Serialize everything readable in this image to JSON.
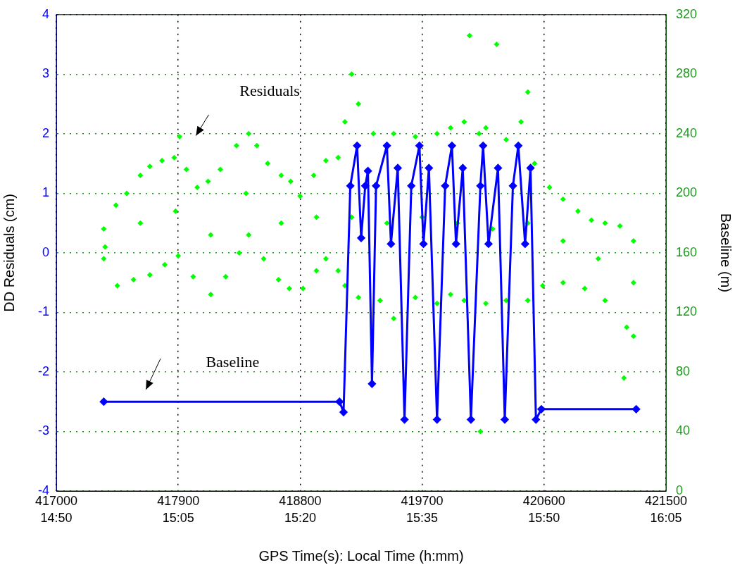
{
  "chart_data": {
    "type": "scatter",
    "xlabel": "GPS Time(s): Local Time (h:mm)",
    "ylabel": "DD Residuals (cm)",
    "y2label": "Baseline (m)",
    "annotations": [
      "Residuals",
      "Baseline"
    ],
    "xlim": [
      417000,
      421500
    ],
    "xticks": [
      417000,
      417900,
      418800,
      419700,
      420600,
      421500
    ],
    "x2lim": [
      14.8333,
      16.0833
    ],
    "x2ticks": [
      {
        "value": 14.8333,
        "label": "14:50"
      },
      {
        "value": 15.0833,
        "label": "15:05"
      },
      {
        "value": 15.3333,
        "label": "15:20"
      },
      {
        "value": 15.5833,
        "label": "15:35"
      },
      {
        "value": 15.8333,
        "label": "15:50"
      },
      {
        "value": 16.0833,
        "label": "16:05"
      }
    ],
    "ylim": [
      -4,
      4
    ],
    "yticks": [
      -4,
      -3,
      -2,
      -1,
      0,
      1,
      2,
      3,
      4
    ],
    "y2lim": [
      0,
      320
    ],
    "y2ticks": [
      0,
      40,
      80,
      120,
      160,
      200,
      240,
      280,
      320
    ],
    "grid": true,
    "legend": false,
    "marker": "diamond",
    "series": [
      {
        "type": "scatter",
        "color": "#00ff00",
        "x": [
          417350,
          417440,
          417520,
          417620,
          417690,
          417780,
          417870,
          417910,
          417960,
          418040,
          418120,
          418210,
          418330,
          418420,
          418480,
          418560,
          418660,
          418730,
          418800,
          418900,
          418990,
          419080,
          419130,
          419180,
          419230,
          419340,
          419490,
          419650,
          419810,
          419910,
          420010,
          420050,
          420120,
          420170,
          420250,
          420320,
          420430,
          420480,
          420530,
          420640,
          420740,
          420850,
          420950,
          421050,
          421160,
          421260,
          417350,
          417450,
          417570,
          417690,
          417800,
          417900,
          418010,
          418140,
          418250,
          418350,
          418420,
          418530,
          418640,
          418720,
          418820,
          418920,
          418990,
          419080,
          419130,
          419230,
          419390,
          419490,
          419650,
          419810,
          419910,
          420010,
          420130,
          420170,
          420320,
          420480,
          420590,
          420740,
          420900,
          421050,
          421190,
          421210,
          421260,
          417360,
          417620,
          417880,
          418140,
          418400,
          418660,
          418920,
          419180,
          419440,
          419700,
          419960,
          420220,
          420480,
          420740,
          421000,
          421260
        ],
        "values": [
          0.4,
          0.8,
          1.0,
          1.3,
          1.45,
          1.55,
          1.6,
          1.95,
          1.4,
          1.1,
          1.2,
          1.4,
          1.8,
          2.0,
          1.8,
          1.5,
          1.3,
          1.2,
          0.95,
          1.3,
          1.55,
          1.6,
          2.2,
          3.0,
          2.5,
          2.0,
          2.0,
          1.95,
          2.0,
          2.1,
          2.2,
          3.65,
          2.0,
          2.1,
          3.5,
          1.9,
          2.2,
          2.7,
          1.5,
          1.1,
          0.9,
          0.7,
          0.55,
          0.5,
          0.45,
          0.2,
          -0.1,
          -0.55,
          -0.45,
          -0.37,
          -0.2,
          -0.05,
          -0.4,
          -0.7,
          -0.4,
          0.0,
          0.3,
          -0.1,
          -0.45,
          -0.6,
          -0.6,
          -0.3,
          -0.1,
          -0.3,
          -0.55,
          -0.75,
          -0.8,
          -1.1,
          -0.75,
          -0.85,
          -0.7,
          -0.8,
          -3.0,
          -0.85,
          -0.8,
          -0.8,
          -0.55,
          -0.5,
          -0.6,
          -0.8,
          -2.1,
          -1.25,
          -1.4,
          0.1,
          0.5,
          0.7,
          0.3,
          1.0,
          0.5,
          0.6,
          0.6,
          0.5,
          0.6,
          0.5,
          0.4,
          0.5,
          0.2,
          -0.1,
          -0.5
        ]
      },
      {
        "type": "line",
        "axis": "y2",
        "color": "#0000ff",
        "line_style": "solid",
        "x": [
          417350,
          419090,
          419120,
          419170,
          419220,
          419250,
          419280,
          419300,
          419330,
          419360,
          419440,
          419470,
          419520,
          419570,
          419620,
          419680,
          419710,
          419750,
          419810,
          419870,
          419920,
          419950,
          420000,
          420060,
          420130,
          420150,
          420190,
          420260,
          420310,
          420370,
          420410,
          420460,
          420500,
          420540,
          420580,
          421280
        ],
        "values": [
          60,
          60,
          53,
          205,
          232,
          170,
          205,
          215,
          72,
          205,
          232,
          166,
          217,
          48,
          205,
          232,
          166,
          217,
          48,
          205,
          232,
          166,
          217,
          48,
          205,
          232,
          166,
          217,
          48,
          205,
          232,
          166,
          217,
          48,
          55,
          55
        ]
      }
    ]
  }
}
